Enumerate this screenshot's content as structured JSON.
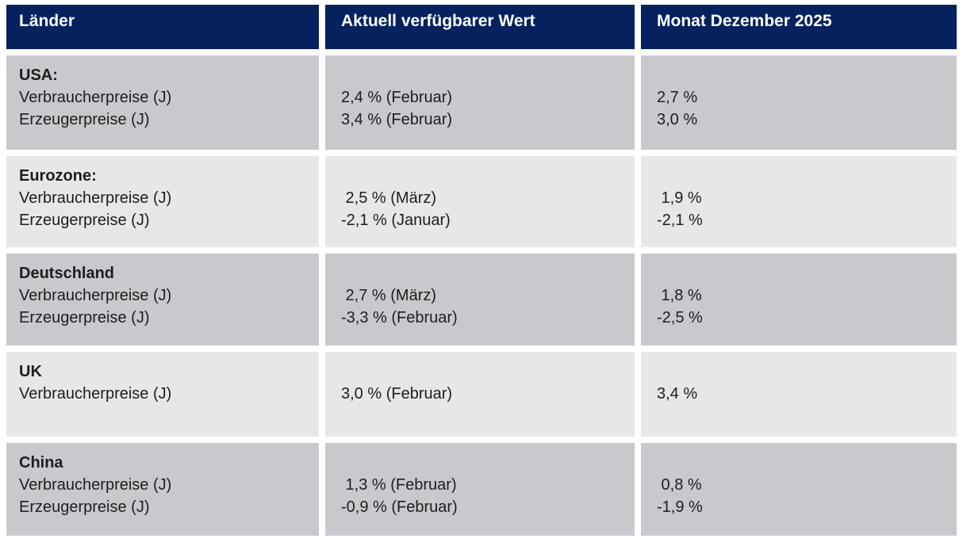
{
  "chart_data": {
    "type": "table",
    "columns": [
      "Länder",
      "Aktuell verfügbarer Wert",
      "Monat Dezember 2025"
    ],
    "rows": [
      {
        "country": "USA:",
        "indicators": [
          "Verbraucherpreise (J)",
          "Erzeugerpreise (J)"
        ],
        "current": [
          "2,4 % (Februar)",
          "3,4 % (Februar)"
        ],
        "current_values": [
          2.4,
          3.4
        ],
        "december": [
          "2,7 %",
          "3,0 %"
        ],
        "december_values": [
          2.7,
          3.0
        ]
      },
      {
        "country": "Eurozone:",
        "indicators": [
          "Verbraucherpreise (J)",
          "Erzeugerpreise (J)"
        ],
        "current": [
          " 2,5 % (März)",
          "-2,1 % (Januar)"
        ],
        "current_values": [
          2.5,
          -2.1
        ],
        "december": [
          " 1,9 %",
          "-2,1 %"
        ],
        "december_values": [
          1.9,
          -2.1
        ]
      },
      {
        "country": "Deutschland",
        "indicators": [
          "Verbraucherpreise (J)",
          "Erzeugerpreise (J)"
        ],
        "current": [
          " 2,7 % (März)",
          "-3,3 % (Februar)"
        ],
        "current_values": [
          2.7,
          -3.3
        ],
        "december": [
          " 1,8 %",
          "-2,5 %"
        ],
        "december_values": [
          1.8,
          -2.5
        ]
      },
      {
        "country": "UK",
        "indicators": [
          "Verbraucherpreise (J)"
        ],
        "current": [
          "3,0 % (Februar)"
        ],
        "current_values": [
          3.0
        ],
        "december": [
          "3,4 %"
        ],
        "december_values": [
          3.4
        ]
      },
      {
        "country": "China",
        "indicators": [
          "Verbraucherpreise (J)",
          "Erzeugerpreise (J)"
        ],
        "current": [
          " 1,3 % (Februar)",
          "-0,9 % (Februar)"
        ],
        "current_values": [
          1.3,
          -0.9
        ],
        "december": [
          " 0,8 %",
          "-1,9 %"
        ],
        "december_values": [
          0.8,
          -1.9
        ]
      }
    ],
    "legend": "none",
    "grid": "off",
    "title": ""
  },
  "colors": {
    "header_bg": "#05215e",
    "header_text": "#ffffff",
    "row_dark": "#c9c9cd",
    "row_light": "#e7e7e9",
    "text": "#1d1d1f"
  }
}
